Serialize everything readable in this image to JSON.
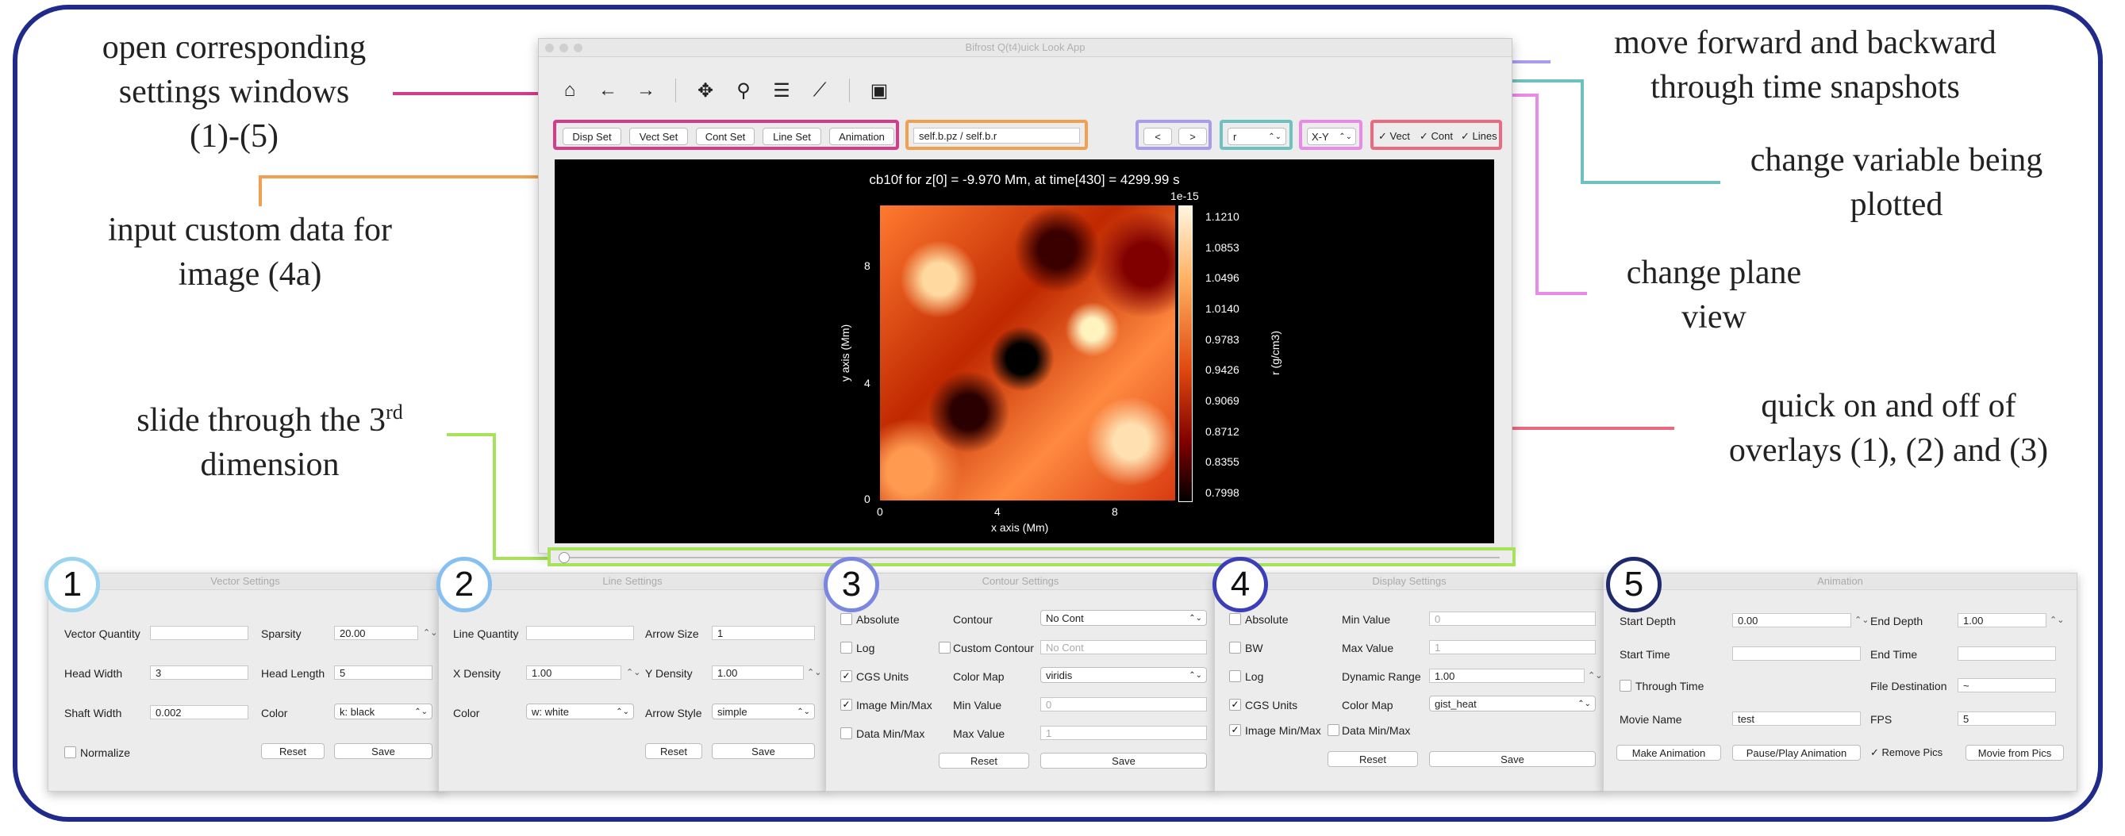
{
  "annotations": {
    "settings": [
      "open corresponding",
      "settings windows",
      "(1)-(5)"
    ],
    "custom_data": [
      "input custom data for",
      "image (4a)"
    ],
    "slide_a": "slide through the 3",
    "slide_sup": "rd",
    "slide_b": "dimension",
    "time": [
      "move forward and backward",
      "through time snapshots"
    ],
    "variable": [
      "change variable being",
      "plotted"
    ],
    "plane": [
      "change plane",
      "view"
    ],
    "overlays": [
      "quick on and off of",
      "overlays (1), (2) and (3)"
    ]
  },
  "main_window": {
    "title": "Bifrost Q(t4)uick Look App",
    "buttons": [
      "Disp Set",
      "Vect Set",
      "Cont Set",
      "Line Set",
      "Animation"
    ],
    "custom_input": "self.b.pz / self.b.r",
    "prev": "<",
    "next": ">",
    "variable": "r",
    "plane": "X-Y",
    "checks": [
      "Vect",
      "Cont",
      "Lines"
    ],
    "plot": {
      "title": "cb10f for z[0] = -9.970 Mm, at time[430] = 4299.99 s",
      "xlabel": "x axis (Mm)",
      "ylabel": "y axis (Mm)",
      "cbar_label": "r (g/cm3)",
      "cbar_top": "1e-15",
      "x_ticks": [
        "0",
        "4",
        "8"
      ],
      "y_ticks": [
        "0",
        "4",
        "8"
      ],
      "cbar_ticks": [
        "1.1210",
        "1.0853",
        "1.0496",
        "1.0140",
        "0.9783",
        "0.9426",
        "0.9069",
        "0.8712",
        "0.8355",
        "0.7998"
      ]
    }
  },
  "windows": {
    "vector": {
      "num": "1",
      "title": "Vector Settings",
      "vector_quantity": "Vector Quantity",
      "sparsity": "Sparsity",
      "sparsity_val": "20.00",
      "head_width": "Head Width",
      "head_width_val": "3",
      "head_length": "Head Length",
      "head_length_val": "5",
      "shaft_width": "Shaft Width",
      "shaft_width_val": "0.002",
      "color": "Color",
      "color_val": "k: black",
      "normalize": "Normalize",
      "reset": "Reset",
      "save": "Save"
    },
    "line": {
      "num": "2",
      "title": "Line Settings",
      "line_quantity": "Line Quantity",
      "arrow_size": "Arrow Size",
      "arrow_size_val": "1",
      "x_density": "X Density",
      "x_density_val": "1.00",
      "y_density": "Y Density",
      "y_density_val": "1.00",
      "color": "Color",
      "color_val": "w: white",
      "arrow_style": "Arrow Style",
      "arrow_style_val": "simple",
      "reset": "Reset",
      "save": "Save"
    },
    "contour": {
      "num": "3",
      "title": "Contour Settings",
      "absolute": "Absolute",
      "contour": "Contour",
      "contour_val": "No Cont",
      "log": "Log",
      "custom_contour": "Custom Contour",
      "custom_contour_ph": "No Cont",
      "cgs_units": "CGS Units",
      "color_map": "Color Map",
      "color_map_val": "viridis",
      "image_minmax": "Image Min/Max",
      "min_value": "Min Value",
      "min_value_ph": "0",
      "data_minmax": "Data Min/Max",
      "max_value": "Max Value",
      "max_value_ph": "1",
      "reset": "Reset",
      "save": "Save"
    },
    "display": {
      "num": "4",
      "title": "Display Settings",
      "absolute": "Absolute",
      "min_value": "Min Value",
      "min_value_ph": "0",
      "bw": "BW",
      "max_value": "Max Value",
      "max_value_ph": "1",
      "log": "Log",
      "dynamic_range": "Dynamic Range",
      "dynamic_range_val": "1.00",
      "cgs_units": "CGS Units",
      "color_map": "Color Map",
      "color_map_val": "gist_heat",
      "image_minmax": "Image Min/Max",
      "data_minmax": "Data Min/Max",
      "reset": "Reset",
      "save": "Save"
    },
    "animation": {
      "num": "5",
      "title": "Animation",
      "start_depth": "Start Depth",
      "start_depth_val": "0.00",
      "end_depth": "End Depth",
      "end_depth_val": "1.00",
      "start_time": "Start Time",
      "end_time": "End Time",
      "through_time": "Through Time",
      "file_destination": "File Destination",
      "file_destination_val": "~",
      "movie_name": "Movie Name",
      "movie_name_val": "test",
      "fps": "FPS",
      "fps_val": "5",
      "make_animation": "Make Animation",
      "pause_play": "Pause/Play Animation",
      "remove_pics": "Remove Pics",
      "movie_from_pics": "Movie from Pics"
    }
  },
  "colors": {
    "frame": "#1f2a8a",
    "settings_box": "#d63a8a",
    "custom_box": "#f0a050",
    "time_box": "#a99cf0",
    "variable_box": "#6fc0c0",
    "plane_box": "#e98ae8",
    "overlay_box": "#ec6a80",
    "slider_box": "#a6e35a",
    "circle1": "#9ad4ef",
    "circle2": "#87c0f0",
    "circle3": "#7b86e0",
    "circle4": "#3a3fb8",
    "circle5": "#1f2a6a"
  }
}
